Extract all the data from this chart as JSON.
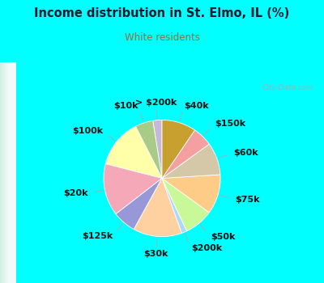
{
  "title": "Income distribution in St. Elmo, IL (%)",
  "subtitle": "White residents",
  "title_color": "#1a1a2e",
  "subtitle_color": "#9b6b3a",
  "background_outer": "#00ffff",
  "background_inner_top": "#d8f0e8",
  "background_inner_bottom": "#e8f8f0",
  "watermark": "City-Data.com",
  "labels": [
    "> $200k",
    "$10k",
    "$100k",
    "$20k",
    "$125k",
    "$30k",
    "$200k",
    "$50k",
    "$75k",
    "$60k",
    "$150k",
    "$40k"
  ],
  "values": [
    2.5,
    5.0,
    13.5,
    14.5,
    6.5,
    13.5,
    1.5,
    8.0,
    11.0,
    9.0,
    5.5,
    9.5
  ],
  "colors": [
    "#c8b8d8",
    "#a8cc88",
    "#ffffaa",
    "#f4a8b8",
    "#9898d8",
    "#ffd0a0",
    "#b0d8f8",
    "#c8f898",
    "#ffcc88",
    "#d4c8a8",
    "#f4a0a0",
    "#c8a030"
  ],
  "start_angle": 90,
  "label_fontsize": 8,
  "figsize": [
    4.0,
    3.5
  ],
  "dpi": 100
}
